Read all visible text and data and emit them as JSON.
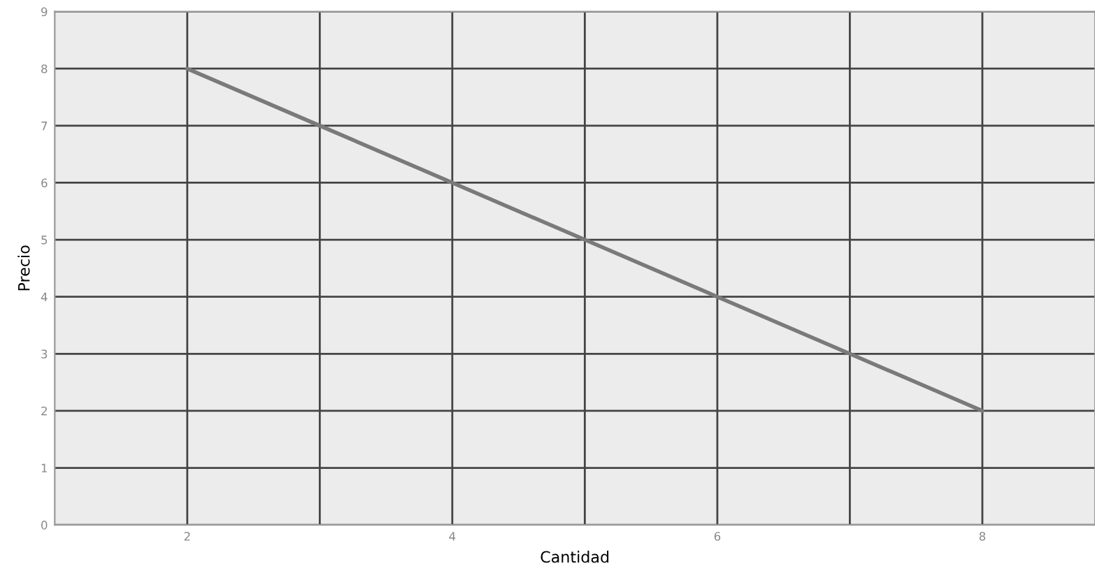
{
  "chart_data": {
    "type": "line",
    "xlabel": "Cantidad",
    "ylabel": "Precio",
    "x": [
      2,
      3,
      4,
      5,
      6,
      7,
      8
    ],
    "series": [
      {
        "color": "#7a7a7a",
        "values": [
          8,
          7,
          6,
          5,
          4,
          3,
          2
        ]
      }
    ],
    "xlim": [
      1,
      8.85
    ],
    "ylim": [
      0,
      9
    ],
    "xticks": [
      2,
      {
        "value": 3,
        "label": null
      },
      4,
      {
        "value": 5,
        "label": null
      },
      6,
      {
        "value": 7,
        "label": null
      },
      8
    ],
    "yticks": [
      0,
      1,
      2,
      3,
      4,
      5,
      6,
      7,
      8,
      9
    ],
    "grid": true,
    "marker": "none",
    "line_style": "solid"
  }
}
